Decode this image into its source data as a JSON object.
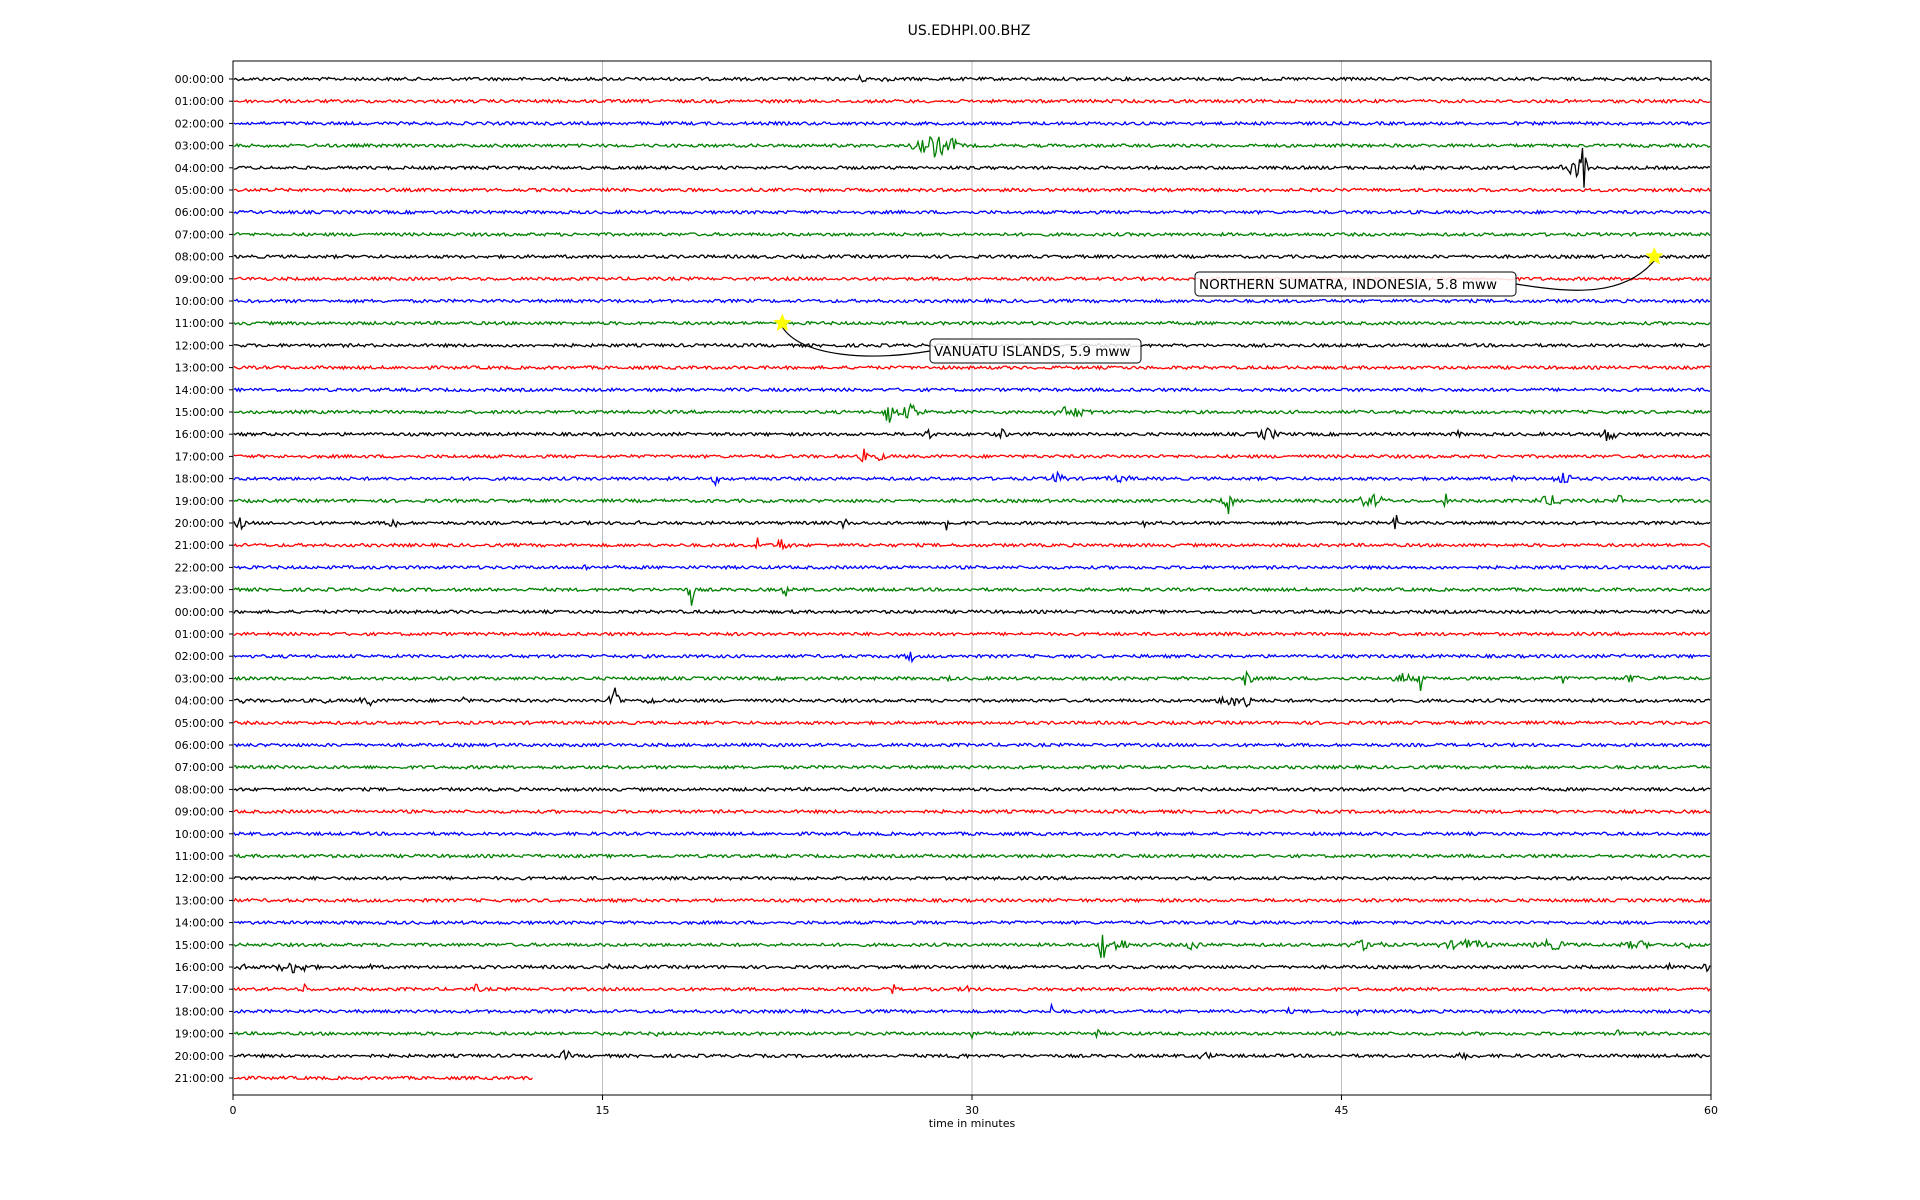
{
  "chart_data": {
    "type": "line",
    "title": "US.EDHPI.00.BHZ",
    "xlabel": "time in minutes",
    "xlim": [
      0,
      60
    ],
    "x_ticks": [
      0,
      15,
      30,
      45,
      60
    ],
    "grid": "vertical",
    "row_colors": [
      "#000000",
      "#ff0000",
      "#0000ff",
      "#008000"
    ],
    "rows": [
      {
        "label": "00:00:00",
        "end_minute": 60,
        "bursts": [
          [
            25.5,
            1.2,
            4
          ],
          [
            26.5,
            0.5,
            5
          ]
        ]
      },
      {
        "label": "01:00:00",
        "end_minute": 60,
        "bursts": []
      },
      {
        "label": "02:00:00",
        "end_minute": 60,
        "bursts": []
      },
      {
        "label": "03:00:00",
        "end_minute": 60,
        "bursts": [
          [
            28.5,
            2,
            12
          ],
          [
            29.2,
            0.5,
            10
          ]
        ]
      },
      {
        "label": "04:00:00",
        "end_minute": 60,
        "bursts": [
          [
            10.7,
            0.4,
            5
          ],
          [
            54.8,
            0.3,
            38
          ],
          [
            54.5,
            1.2,
            10
          ],
          [
            48,
            0.3,
            4
          ]
        ]
      },
      {
        "label": "05:00:00",
        "end_minute": 60,
        "bursts": []
      },
      {
        "label": "06:00:00",
        "end_minute": 60,
        "bursts": []
      },
      {
        "label": "07:00:00",
        "end_minute": 60,
        "bursts": []
      },
      {
        "label": "08:00:00",
        "end_minute": 60,
        "bursts": []
      },
      {
        "label": "09:00:00",
        "end_minute": 60,
        "bursts": []
      },
      {
        "label": "10:00:00",
        "end_minute": 60,
        "bursts": []
      },
      {
        "label": "11:00:00",
        "end_minute": 60,
        "bursts": []
      },
      {
        "label": "12:00:00",
        "end_minute": 60,
        "bursts": []
      },
      {
        "label": "13:00:00",
        "end_minute": 60,
        "bursts": []
      },
      {
        "label": "14:00:00",
        "end_minute": 60,
        "bursts": []
      },
      {
        "label": "15:00:00",
        "end_minute": 60,
        "bursts": [
          [
            26.6,
            0.4,
            18
          ],
          [
            27.5,
            1.5,
            8
          ],
          [
            34,
            2,
            7
          ],
          [
            31.5,
            0.3,
            4
          ]
        ]
      },
      {
        "label": "16:00:00",
        "end_minute": 60,
        "bursts": [
          [
            28.2,
            0.5,
            7
          ],
          [
            31.2,
            0.6,
            6
          ],
          [
            42,
            1.2,
            7
          ],
          [
            49.7,
            0.5,
            5
          ],
          [
            55.8,
            1,
            8
          ]
        ]
      },
      {
        "label": "17:00:00",
        "end_minute": 60,
        "bursts": [
          [
            25.6,
            0.3,
            10
          ],
          [
            26.2,
            0.8,
            6
          ]
        ]
      },
      {
        "label": "18:00:00",
        "end_minute": 60,
        "bursts": [
          [
            19.6,
            0.4,
            7
          ],
          [
            33.5,
            0.8,
            8
          ],
          [
            36,
            2,
            4
          ],
          [
            54,
            1,
            8
          ],
          [
            52,
            0.3,
            4
          ]
        ]
      },
      {
        "label": "19:00:00",
        "end_minute": 60,
        "bursts": [
          [
            40.4,
            0.5,
            14
          ],
          [
            46.2,
            1.5,
            8
          ],
          [
            49.2,
            0.3,
            10
          ],
          [
            53.5,
            2,
            6
          ],
          [
            56.3,
            0.3,
            8
          ]
        ]
      },
      {
        "label": "20:00:00",
        "end_minute": 60,
        "bursts": [
          [
            0.3,
            0.4,
            10
          ],
          [
            6.5,
            0.6,
            8
          ],
          [
            24.8,
            0.2,
            14
          ],
          [
            29,
            0.2,
            20
          ],
          [
            47.2,
            0.2,
            16
          ],
          [
            16.5,
            0.3,
            5
          ],
          [
            37,
            0.3,
            4
          ]
        ]
      },
      {
        "label": "21:00:00",
        "end_minute": 60,
        "bursts": [
          [
            21.3,
            0.3,
            12
          ],
          [
            22.3,
            0.8,
            8
          ]
        ]
      },
      {
        "label": "22:00:00",
        "end_minute": 60,
        "bursts": [
          [
            14.3,
            0.3,
            6
          ]
        ]
      },
      {
        "label": "23:00:00",
        "end_minute": 60,
        "bursts": [
          [
            18.6,
            0.3,
            18
          ],
          [
            22.4,
            0.2,
            14
          ]
        ]
      },
      {
        "label": "00:00:00",
        "end_minute": 60,
        "bursts": []
      },
      {
        "label": "01:00:00",
        "end_minute": 60,
        "bursts": []
      },
      {
        "label": "02:00:00",
        "end_minute": 60,
        "bursts": [
          [
            27.5,
            0.6,
            7
          ],
          [
            56.5,
            0.3,
            4
          ]
        ]
      },
      {
        "label": "03:00:00",
        "end_minute": 60,
        "bursts": [
          [
            29,
            0.4,
            5
          ],
          [
            41.2,
            0.3,
            22
          ],
          [
            47.5,
            1,
            7
          ],
          [
            48.2,
            0.2,
            18
          ],
          [
            52.1,
            0.3,
            6
          ],
          [
            54,
            0.5,
            6
          ],
          [
            56.8,
            1,
            5
          ],
          [
            58,
            0.5,
            4
          ]
        ]
      },
      {
        "label": "04:00:00",
        "end_minute": 60,
        "bursts": [
          [
            0.4,
            0.2,
            6
          ],
          [
            3.7,
            0.2,
            7
          ],
          [
            5.5,
            1,
            6
          ],
          [
            9.4,
            0.2,
            8
          ],
          [
            15.5,
            0.4,
            25
          ],
          [
            17,
            0.8,
            5
          ],
          [
            41.2,
            0.2,
            30
          ],
          [
            40.5,
            1.2,
            8
          ]
        ]
      },
      {
        "label": "05:00:00",
        "end_minute": 60,
        "bursts": []
      },
      {
        "label": "06:00:00",
        "end_minute": 60,
        "bursts": []
      },
      {
        "label": "07:00:00",
        "end_minute": 60,
        "bursts": []
      },
      {
        "label": "08:00:00",
        "end_minute": 60,
        "bursts": []
      },
      {
        "label": "09:00:00",
        "end_minute": 60,
        "bursts": []
      },
      {
        "label": "10:00:00",
        "end_minute": 60,
        "bursts": []
      },
      {
        "label": "11:00:00",
        "end_minute": 60,
        "bursts": []
      },
      {
        "label": "12:00:00",
        "end_minute": 60,
        "bursts": []
      },
      {
        "label": "13:00:00",
        "end_minute": 60,
        "bursts": []
      },
      {
        "label": "14:00:00",
        "end_minute": 60,
        "bursts": []
      },
      {
        "label": "15:00:00",
        "end_minute": 60,
        "bursts": [
          [
            35.3,
            0.4,
            20
          ],
          [
            36,
            1,
            8
          ],
          [
            39,
            0.8,
            7
          ],
          [
            46,
            2,
            6
          ],
          [
            50,
            3,
            6
          ],
          [
            53.5,
            2,
            6
          ],
          [
            57,
            2,
            5
          ],
          [
            59,
            0.5,
            6
          ]
        ]
      },
      {
        "label": "16:00:00",
        "end_minute": 60,
        "bursts": [
          [
            0.3,
            0.5,
            8
          ],
          [
            2.5,
            2,
            7
          ],
          [
            5.6,
            0.2,
            6
          ],
          [
            15.2,
            0.3,
            5
          ],
          [
            59.8,
            0.3,
            6
          ],
          [
            58.3,
            0.3,
            4
          ]
        ]
      },
      {
        "label": "17:00:00",
        "end_minute": 60,
        "bursts": [
          [
            2.9,
            0.2,
            10
          ],
          [
            9.9,
            0.4,
            7
          ],
          [
            26.8,
            0.2,
            10
          ],
          [
            29.8,
            0.2,
            10
          ]
        ]
      },
      {
        "label": "18:00:00",
        "end_minute": 60,
        "bursts": [
          [
            31.7,
            0.2,
            6
          ],
          [
            33.2,
            0.2,
            10
          ],
          [
            42.9,
            0.2,
            6
          ],
          [
            45.7,
            0.2,
            7
          ]
        ]
      },
      {
        "label": "19:00:00",
        "end_minute": 60,
        "bursts": [
          [
            6.6,
            0.2,
            5
          ],
          [
            17.2,
            0.2,
            4
          ],
          [
            30,
            0.2,
            12
          ],
          [
            35.1,
            0.2,
            6
          ],
          [
            56.2,
            0.2,
            8
          ]
        ]
      },
      {
        "label": "20:00:00",
        "end_minute": 60,
        "bursts": [
          [
            13.5,
            0.4,
            9
          ],
          [
            29.5,
            1,
            4
          ],
          [
            39.5,
            1.5,
            4
          ],
          [
            50,
            1.2,
            4
          ],
          [
            59.5,
            0.6,
            4
          ]
        ]
      },
      {
        "label": "21:00:00",
        "end_minute": 12.2,
        "bursts": []
      }
    ],
    "events": [
      {
        "label": "NORTHERN SUMATRA, INDONESIA, 5.8 mww",
        "row": 8,
        "minute": 57.7,
        "marker": "star",
        "color": "#ffff00"
      },
      {
        "label": "VANUATU ISLANDS, 5.9 mww",
        "row": 11,
        "minute": 22.3,
        "marker": "star",
        "color": "#ffff00"
      }
    ]
  }
}
